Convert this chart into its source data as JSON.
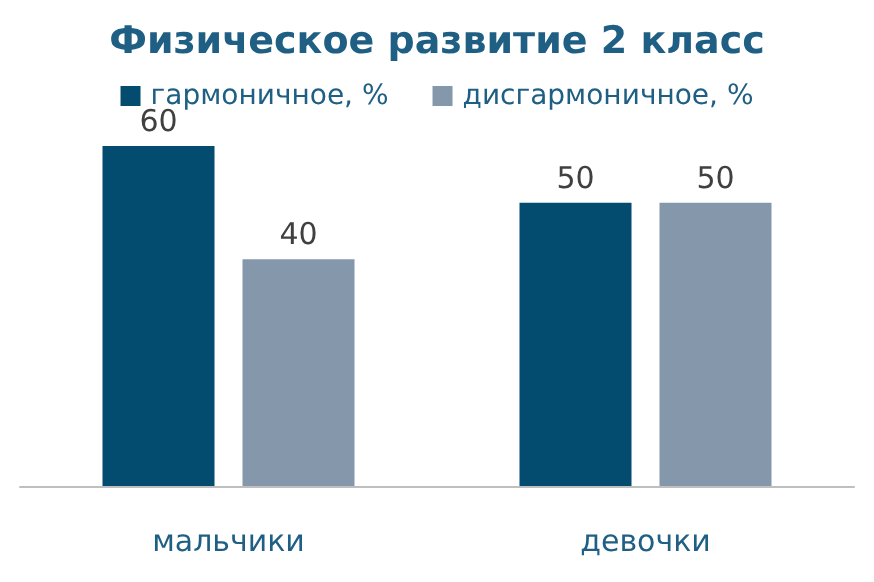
{
  "chart_data": {
    "type": "bar",
    "title": "Физическое развитие 2 класс",
    "categories": [
      "мальчики",
      "девочки"
    ],
    "series": [
      {
        "name": "гармоничное, %",
        "color": "#034b6f",
        "values": [
          60,
          50
        ]
      },
      {
        "name": "дисгармоничное, %",
        "color": "#8497ab",
        "values": [
          40,
          50
        ]
      }
    ],
    "data_labels": true,
    "legend": "top",
    "grid": false
  }
}
